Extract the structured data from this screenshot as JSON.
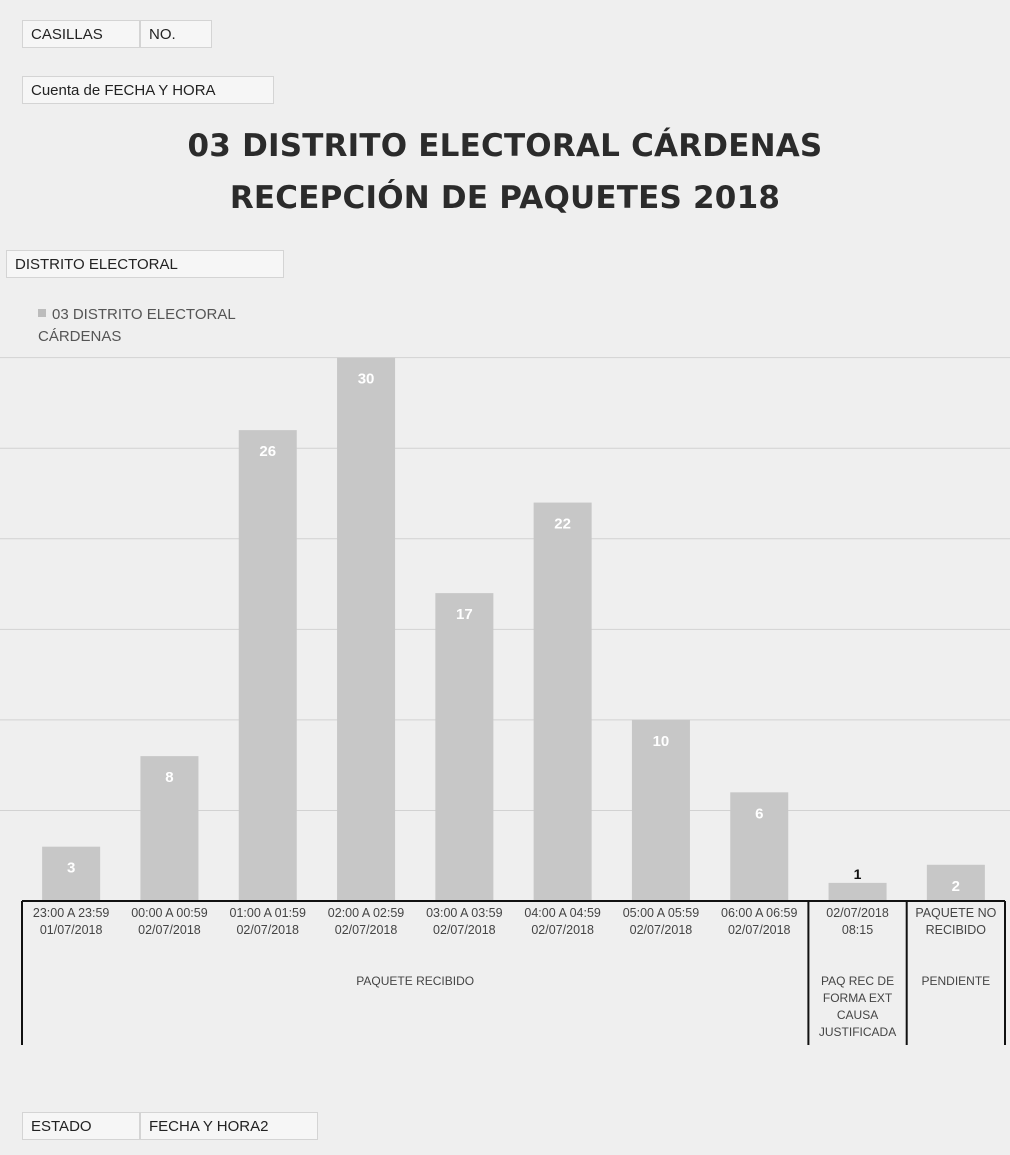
{
  "filters": {
    "top_buttons": [
      {
        "label": "CASILLAS"
      },
      {
        "label": "NO."
      }
    ],
    "values_field": "Cuenta de FECHA Y HORA",
    "legend_field": "DISTRITO ELECTORAL",
    "axis_fields": [
      {
        "label": "ESTADO"
      },
      {
        "label": "FECHA Y HORA2"
      }
    ]
  },
  "chart_data": {
    "type": "bar",
    "title": "03 DISTRITO ELECTORAL CÁRDENAS",
    "subtitle": "RECEPCIÓN DE PAQUETES 2018",
    "categories": [
      {
        "line1": "23:00 A 23:59",
        "line2": "01/07/2018"
      },
      {
        "line1": "00:00 A 00:59",
        "line2": "02/07/2018"
      },
      {
        "line1": "01:00 A 01:59",
        "line2": "02/07/2018"
      },
      {
        "line1": "02:00 A 02:59",
        "line2": "02/07/2018"
      },
      {
        "line1": "03:00 A 03:59",
        "line2": "02/07/2018"
      },
      {
        "line1": "04:00 A 04:59",
        "line2": "02/07/2018"
      },
      {
        "line1": "05:00 A 05:59",
        "line2": "02/07/2018"
      },
      {
        "line1": "06:00 A 06:59",
        "line2": "02/07/2018"
      },
      {
        "line1": "02/07/2018",
        "line2": "08:15"
      },
      {
        "line1": "PAQUETE NO",
        "line2": "RECIBIDO"
      }
    ],
    "groups": [
      {
        "label": "PAQUETE RECIBIDO",
        "start": 0,
        "end": 7
      },
      {
        "label": "PAQ REC DE FORMA EXT CAUSA JUSTIFICADA",
        "start": 8,
        "end": 8
      },
      {
        "label": "PENDIENTE",
        "start": 9,
        "end": 9
      }
    ],
    "series": [
      {
        "name": "03 DISTRITO ELECTORAL CÁRDENAS",
        "values": [
          3,
          8,
          26,
          30,
          17,
          22,
          10,
          6,
          1,
          2
        ]
      }
    ],
    "ylim": [
      0,
      32
    ],
    "grid": true,
    "legend_position": "top-left",
    "bar_color": "#c7c7c7",
    "label_color_inside": "#ffffff",
    "label_color_outside": "#111111"
  }
}
